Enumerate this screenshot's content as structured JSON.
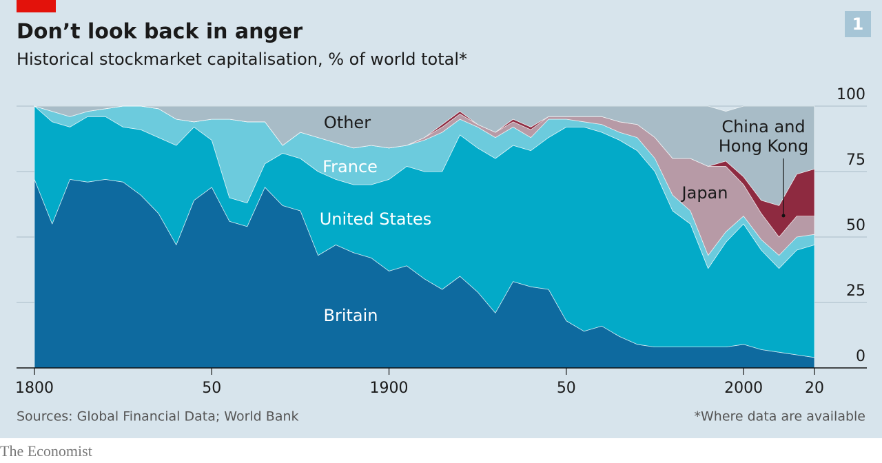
{
  "chart_data": {
    "type": "stacked-area",
    "title": "Don’t look back in anger",
    "subtitle": "Historical stockmarket capitalisation, % of world total*",
    "chart_number": "1",
    "source": "Sources: Global Financial Data; World Bank",
    "footnote": "*Where data are available",
    "brand": "The Economist",
    "x": [
      1800,
      1805,
      1810,
      1815,
      1820,
      1825,
      1830,
      1835,
      1840,
      1845,
      1850,
      1855,
      1860,
      1865,
      1870,
      1875,
      1880,
      1885,
      1890,
      1895,
      1900,
      1905,
      1910,
      1915,
      1920,
      1925,
      1930,
      1935,
      1940,
      1945,
      1950,
      1955,
      1960,
      1965,
      1970,
      1975,
      1980,
      1985,
      1990,
      1995,
      2000,
      2005,
      2010,
      2015,
      2020
    ],
    "xlim": [
      1800,
      2020
    ],
    "xticks": [
      1800,
      {
        "value": 1850,
        "label": "50"
      },
      1900,
      {
        "value": 1950,
        "label": "50"
      },
      2000,
      {
        "value": 2020,
        "label": "20"
      }
    ],
    "ylim": [
      0,
      100
    ],
    "yticks": [
      0,
      25,
      50,
      75,
      100
    ],
    "series": [
      {
        "name": "Britain",
        "color": "#0e6a9f",
        "values": [
          72,
          55,
          72,
          71,
          72,
          71,
          66,
          59,
          47,
          64,
          69,
          56,
          54,
          69,
          62,
          60,
          43,
          47,
          44,
          42,
          37,
          39,
          34,
          30,
          35,
          29,
          21,
          33,
          31,
          30,
          18,
          14,
          16,
          12,
          9,
          8,
          8,
          8,
          8,
          8,
          9,
          7,
          6,
          5,
          4
        ]
      },
      {
        "name": "United States",
        "color": "#03aac8",
        "values": [
          28,
          39,
          20,
          25,
          24,
          21,
          25,
          29,
          38,
          28,
          18,
          9,
          9,
          9,
          20,
          20,
          32,
          25,
          26,
          28,
          35,
          38,
          41,
          45,
          54,
          55,
          59,
          52,
          52,
          58,
          74,
          78,
          74,
          75,
          74,
          67,
          52,
          47,
          30,
          40,
          46,
          38,
          32,
          40,
          43
        ]
      },
      {
        "name": "France",
        "color": "#6ccbdd",
        "values": [
          0,
          4,
          4,
          2,
          3,
          8,
          9,
          11,
          10,
          2,
          8,
          30,
          31,
          16,
          3,
          10,
          13,
          14,
          14,
          15,
          12,
          8,
          12,
          15,
          6,
          8,
          8,
          7,
          5,
          7,
          3,
          2,
          3,
          3,
          5,
          5,
          6,
          5,
          5,
          4,
          3,
          4,
          5,
          5,
          4
        ]
      },
      {
        "name": "Japan",
        "color": "#b79aa6",
        "values": [
          0,
          0,
          0,
          0,
          0,
          0,
          0,
          0,
          0,
          0,
          0,
          0,
          0,
          0,
          0,
          0,
          0,
          0,
          0,
          0,
          0,
          0,
          1,
          2,
          2,
          1,
          2,
          2,
          3,
          1,
          1,
          2,
          3,
          4,
          5,
          8,
          14,
          20,
          34,
          25,
          12,
          10,
          7,
          8,
          7
        ]
      },
      {
        "name": "China and Hong Kong",
        "color": "#8e2a40",
        "values": [
          0,
          0,
          0,
          0,
          0,
          0,
          0,
          0,
          0,
          0,
          0,
          0,
          0,
          0,
          0,
          0,
          0,
          0,
          0,
          0,
          0,
          0,
          0,
          1,
          1,
          0,
          0,
          1,
          1,
          0,
          0,
          0,
          0,
          0,
          0,
          0,
          0,
          0,
          0,
          2,
          3,
          5,
          12,
          16,
          18
        ]
      },
      {
        "name": "Other",
        "color": "#a8bcc7",
        "values": [
          0,
          2,
          4,
          2,
          1,
          0,
          0,
          1,
          5,
          6,
          5,
          5,
          6,
          6,
          15,
          10,
          12,
          14,
          16,
          15,
          16,
          15,
          12,
          7,
          2,
          7,
          10,
          5,
          8,
          4,
          4,
          4,
          4,
          6,
          7,
          12,
          20,
          20,
          23,
          19,
          27,
          36,
          38,
          26,
          24
        ]
      }
    ]
  }
}
